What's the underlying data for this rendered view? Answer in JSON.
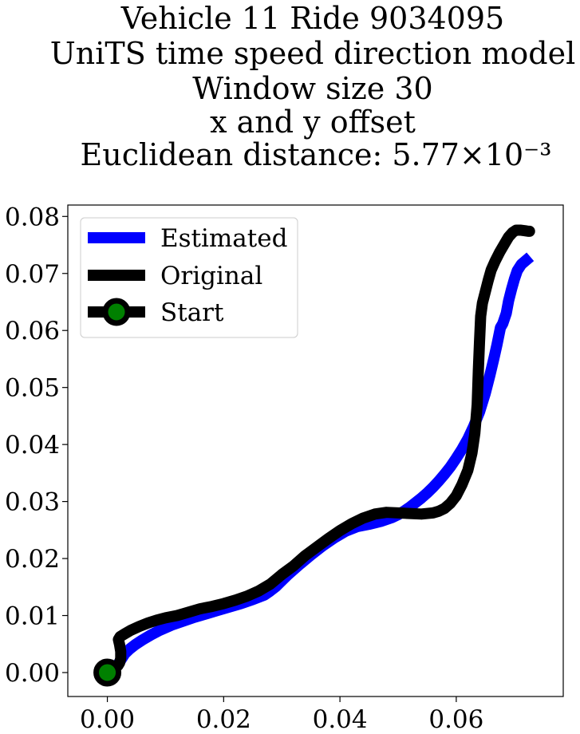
{
  "chart_data": {
    "type": "line",
    "title_lines": [
      "Vehicle 11 Ride 9034095",
      "UniTS time speed direction model",
      "Window size 30",
      "x and y offset",
      "Euclidean distance: 5.77×10⁻³"
    ],
    "xlabel": "",
    "ylabel": "",
    "xlim": [
      -0.0068,
      0.0784
    ],
    "ylim": [
      -0.0042,
      0.082
    ],
    "xticks": [
      0.0,
      0.02,
      0.04,
      0.06
    ],
    "xtick_labels": [
      "0.00",
      "0.02",
      "0.04",
      "0.06"
    ],
    "yticks": [
      0.0,
      0.01,
      0.02,
      0.03,
      0.04,
      0.05,
      0.06,
      0.07,
      0.08
    ],
    "ytick_labels": [
      "0.00",
      "0.01",
      "0.02",
      "0.03",
      "0.04",
      "0.05",
      "0.06",
      "0.07",
      "0.08"
    ],
    "grid": false,
    "legend_position": "top-left",
    "series": [
      {
        "name": "Estimated",
        "color": "#0000ff",
        "x": [
          0.0,
          0.0005,
          0.001,
          0.0015,
          0.002,
          0.0025,
          0.003,
          0.0038,
          0.0048,
          0.006,
          0.0075,
          0.009,
          0.011,
          0.013,
          0.015,
          0.017,
          0.019,
          0.021,
          0.023,
          0.025,
          0.027,
          0.028,
          0.029,
          0.03,
          0.031,
          0.033,
          0.035,
          0.037,
          0.039,
          0.041,
          0.043,
          0.045,
          0.047,
          0.049,
          0.05,
          0.051,
          0.052,
          0.053,
          0.054,
          0.055,
          0.056,
          0.057,
          0.058,
          0.059,
          0.06,
          0.061,
          0.062,
          0.063,
          0.064,
          0.065,
          0.0658,
          0.0665,
          0.067,
          0.0676,
          0.068,
          0.0686,
          0.069,
          0.0695,
          0.07,
          0.0705,
          0.0712,
          0.072
        ],
        "y": [
          0.0,
          0.0002,
          0.0006,
          0.0011,
          0.0017,
          0.0025,
          0.0033,
          0.0041,
          0.0049,
          0.0057,
          0.0066,
          0.0074,
          0.0083,
          0.009,
          0.0097,
          0.0103,
          0.0109,
          0.0115,
          0.0121,
          0.0128,
          0.0136,
          0.0143,
          0.0151,
          0.0161,
          0.0171,
          0.0189,
          0.0206,
          0.0222,
          0.0236,
          0.0248,
          0.0256,
          0.026,
          0.0265,
          0.0272,
          0.0277,
          0.0283,
          0.029,
          0.0298,
          0.0306,
          0.0315,
          0.0325,
          0.0336,
          0.0348,
          0.0361,
          0.0376,
          0.0392,
          0.041,
          0.0432,
          0.0457,
          0.049,
          0.0522,
          0.0552,
          0.0575,
          0.0605,
          0.0612,
          0.063,
          0.0652,
          0.0672,
          0.069,
          0.0705,
          0.0716,
          0.0723
        ]
      },
      {
        "name": "Original",
        "color": "#000000",
        "x": [
          0.0,
          0.0004,
          0.0009,
          0.0014,
          0.0018,
          0.0021,
          0.0023,
          0.0023,
          0.0021,
          0.0019,
          0.0022,
          0.003,
          0.004,
          0.0055,
          0.007,
          0.0085,
          0.01,
          0.012,
          0.014,
          0.016,
          0.018,
          0.02,
          0.022,
          0.024,
          0.026,
          0.028,
          0.03,
          0.032,
          0.034,
          0.036,
          0.038,
          0.04,
          0.042,
          0.044,
          0.046,
          0.048,
          0.05,
          0.052,
          0.054,
          0.056,
          0.057,
          0.058,
          0.059,
          0.06,
          0.061,
          0.062,
          0.0627,
          0.0632,
          0.0636,
          0.0638,
          0.064,
          0.0642,
          0.0645,
          0.065,
          0.0655,
          0.066,
          0.0667,
          0.0675,
          0.0683,
          0.069,
          0.0697,
          0.0703,
          0.071,
          0.0718,
          0.0724,
          0.0726
        ],
        "y": [
          0.0,
          0.0003,
          0.0006,
          0.0009,
          0.0012,
          0.0017,
          0.0025,
          0.0037,
          0.0049,
          0.0058,
          0.0063,
          0.0068,
          0.0074,
          0.0081,
          0.0087,
          0.0092,
          0.0096,
          0.01,
          0.0106,
          0.0112,
          0.0116,
          0.0121,
          0.0127,
          0.0134,
          0.0143,
          0.0155,
          0.0172,
          0.0187,
          0.0205,
          0.022,
          0.0235,
          0.0249,
          0.0261,
          0.0271,
          0.0278,
          0.0281,
          0.028,
          0.0279,
          0.0278,
          0.028,
          0.0283,
          0.0288,
          0.0297,
          0.031,
          0.033,
          0.0355,
          0.0385,
          0.042,
          0.047,
          0.053,
          0.058,
          0.0625,
          0.0648,
          0.0668,
          0.0688,
          0.0706,
          0.0722,
          0.0738,
          0.0752,
          0.0764,
          0.0772,
          0.0776,
          0.0776,
          0.0775,
          0.0774,
          0.0774
        ]
      }
    ],
    "start_marker": {
      "name": "Start",
      "x": 0.0,
      "y": 0.0,
      "line_color": "#000000",
      "face_color": "#008000"
    }
  }
}
